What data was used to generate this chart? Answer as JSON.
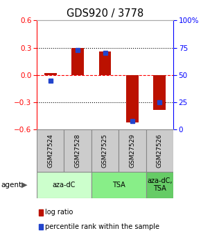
{
  "title": "GDS920 / 3778",
  "samples": [
    "GSM27524",
    "GSM27528",
    "GSM27525",
    "GSM27529",
    "GSM27526"
  ],
  "log_ratios": [
    0.02,
    0.3,
    0.26,
    -0.52,
    -0.38
  ],
  "percentile_ranks": [
    45,
    73,
    70,
    8,
    25
  ],
  "agent_groups": [
    {
      "label": "aza-dC",
      "start": 0,
      "end": 2,
      "color": "#ccffcc"
    },
    {
      "label": "TSA",
      "start": 2,
      "end": 4,
      "color": "#88ee88"
    },
    {
      "label": "aza-dC,\nTSA",
      "start": 4,
      "end": 5,
      "color": "#66cc66"
    }
  ],
  "bar_color": "#bb1100",
  "dot_color": "#2244cc",
  "ylim": [
    -0.6,
    0.6
  ],
  "yticks_left": [
    -0.6,
    -0.3,
    0.0,
    0.3,
    0.6
  ],
  "yticks_right": [
    0,
    25,
    50,
    75,
    100
  ],
  "bar_width": 0.45,
  "dot_size": 4,
  "background_color": "#ffffff",
  "sample_box_color": "#cccccc",
  "legend_log_ratio": "log ratio",
  "legend_percentile": "percentile rank within the sample"
}
